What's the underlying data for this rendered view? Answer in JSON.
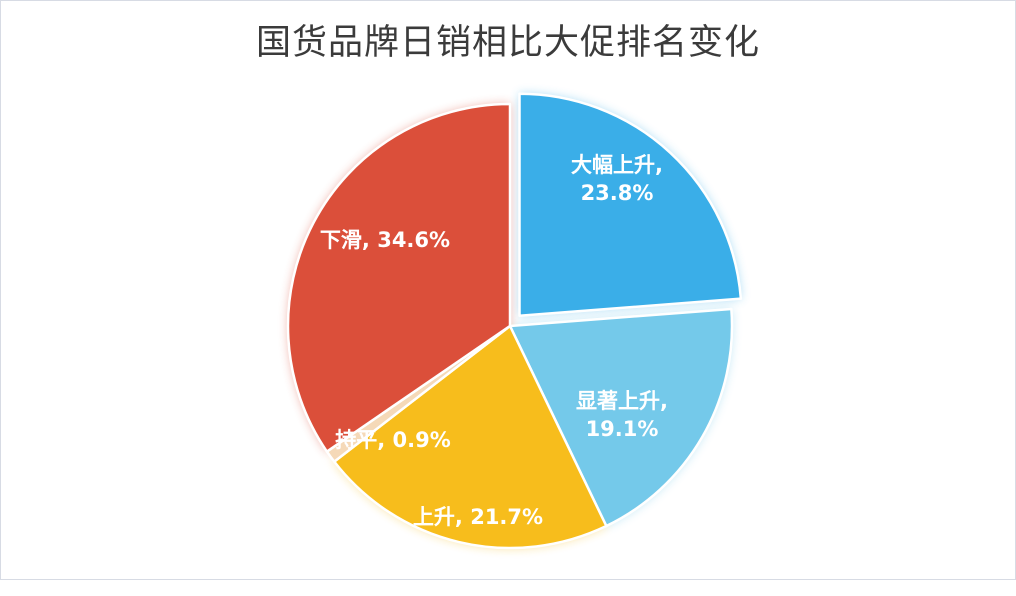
{
  "chart_data": {
    "type": "pie",
    "title": "国货品牌日销相比大促排名变化",
    "slices": [
      {
        "name": "大幅上升",
        "value": 23.8,
        "label_line1": "大幅上升,",
        "label_line2": "23.8%",
        "color": "#3aaee8",
        "exploded": true
      },
      {
        "name": "显著上升",
        "value": 19.1,
        "label_line1": "显著上升,",
        "label_line2": "19.1%",
        "color": "#74c9ea",
        "exploded": false
      },
      {
        "name": "上升",
        "value": 21.7,
        "label_line1": "上升, 21.7%",
        "label_line2": "",
        "color": "#f7bd1c",
        "exploded": false
      },
      {
        "name": "持平",
        "value": 0.9,
        "label_line1": "持平, 0.9%",
        "label_line2": "",
        "color": "#f5d9b8",
        "exploded": false
      },
      {
        "name": "下滑",
        "value": 34.6,
        "label_line1": "下滑, 34.6%",
        "label_line2": "",
        "color": "#db4f3a",
        "exploded": false
      }
    ],
    "legend": "none",
    "labels_inside": true
  }
}
